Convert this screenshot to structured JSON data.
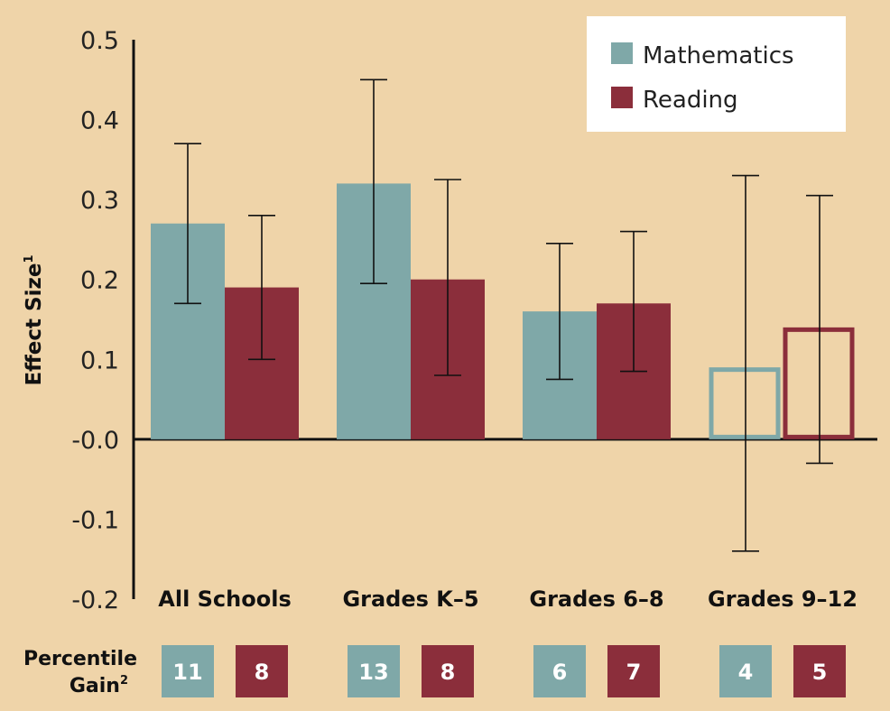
{
  "chart_data": {
    "type": "bar",
    "categories": [
      "All Schools",
      "Grades K–5",
      "Grades 6–8",
      "Grades 9–12"
    ],
    "series": [
      {
        "name": "Mathematics",
        "color": "#7fa8a8",
        "values": [
          0.27,
          0.32,
          0.16,
          0.09
        ],
        "error_low": [
          0.17,
          0.195,
          0.075,
          -0.14
        ],
        "error_high": [
          0.37,
          0.45,
          0.245,
          0.33
        ],
        "outlined": [
          false,
          false,
          false,
          true
        ],
        "percentile_gain": [
          "11",
          "13",
          "6",
          "4"
        ]
      },
      {
        "name": "Reading",
        "color": "#8b2e3b",
        "values": [
          0.19,
          0.2,
          0.17,
          0.14
        ],
        "error_low": [
          0.1,
          0.08,
          0.085,
          -0.03
        ],
        "error_high": [
          0.28,
          0.325,
          0.26,
          0.305
        ],
        "outlined": [
          false,
          false,
          false,
          true
        ],
        "percentile_gain": [
          "8",
          "8",
          "7",
          "5"
        ]
      }
    ],
    "y_ticks": [
      "0.5",
      "0.4",
      "0.3",
      "0.2",
      "0.1",
      "-0.0",
      "-0.1",
      "-0.2"
    ],
    "ylim": [
      -0.2,
      0.5
    ],
    "ylabel": "Effect Size",
    "ylabel_sup": "1",
    "legend_position": "top-right",
    "grid": false,
    "gain_label_line1": "Percentile",
    "gain_label_line2": "Gain",
    "gain_label_sup": "2"
  }
}
